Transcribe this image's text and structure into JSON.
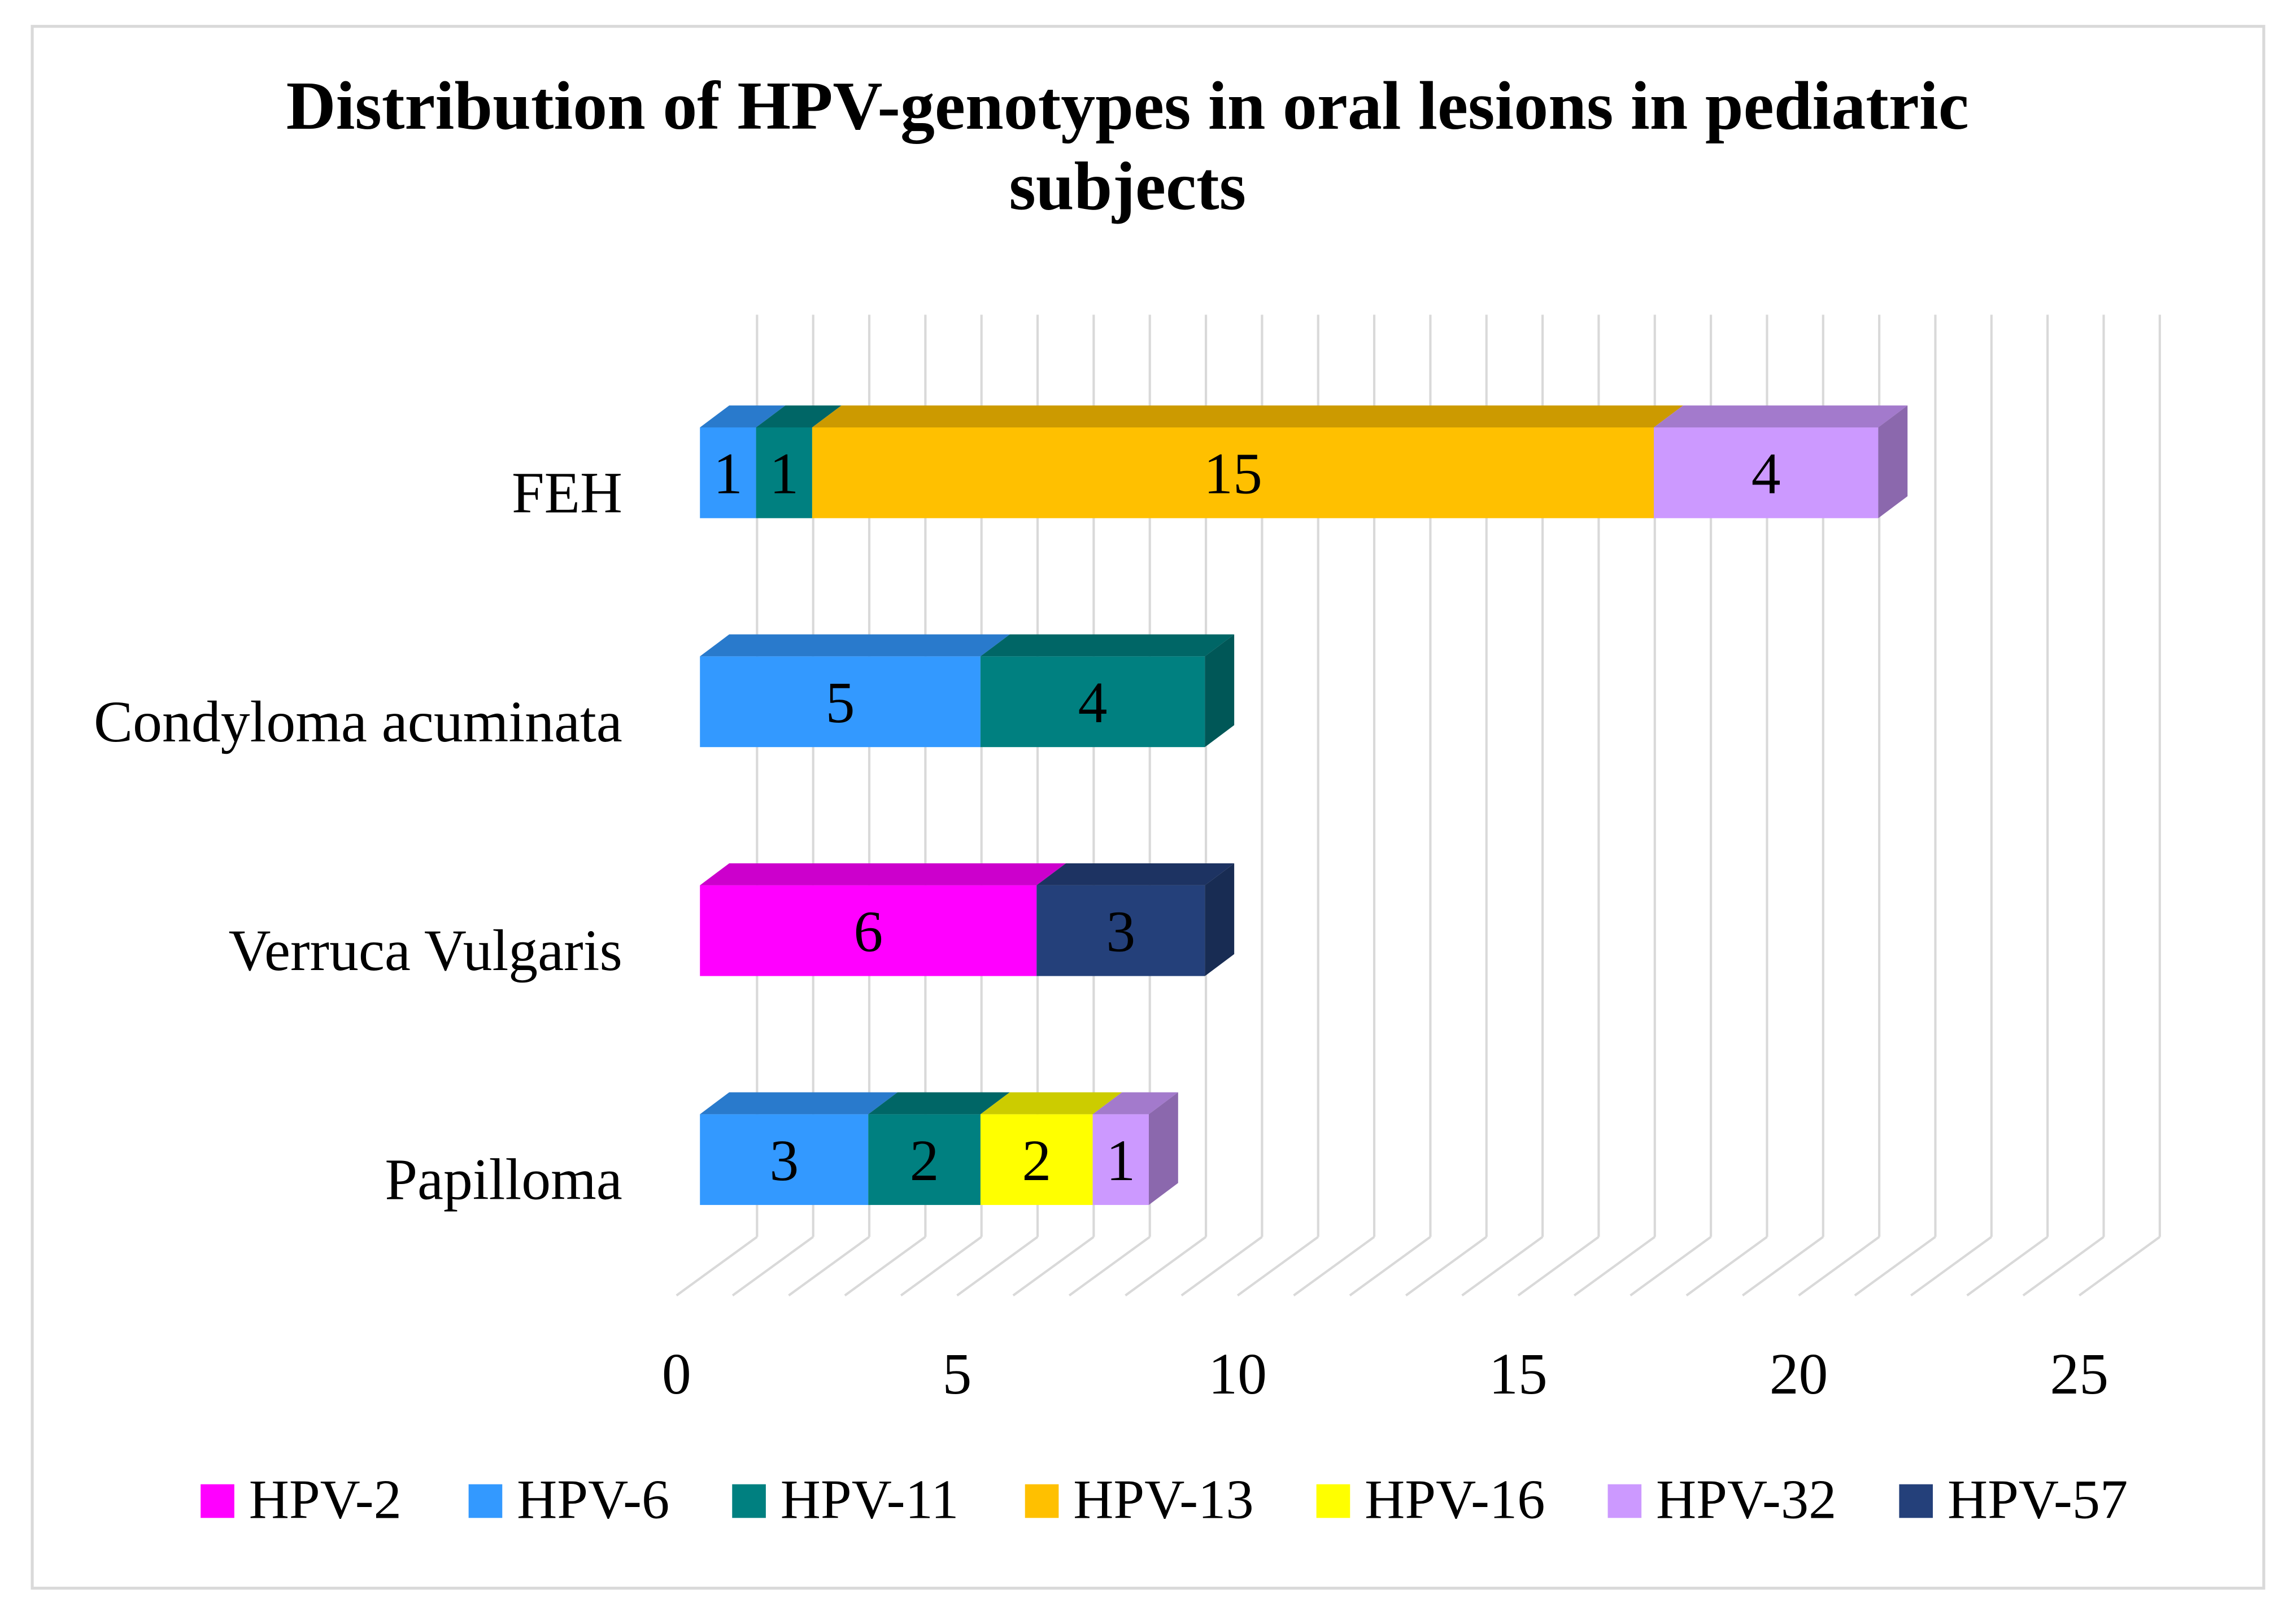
{
  "chart_data": {
    "type": "bar",
    "horizontal": true,
    "stacked": true,
    "three_d": true,
    "title_lines": [
      "Distribution of HPV-genotypes in oral lesions in pediatric",
      "subjects"
    ],
    "categories": [
      "FEH",
      "Condyloma acuminata",
      "Verruca Vulgaris",
      "Papilloma"
    ],
    "series": [
      {
        "name": "HPV-2",
        "color": "#FF00FF",
        "values": [
          0,
          0,
          6,
          0
        ]
      },
      {
        "name": "HPV-6",
        "color": "#3399FF",
        "values": [
          1,
          5,
          0,
          3
        ]
      },
      {
        "name": "HPV-11",
        "color": "#008080",
        "values": [
          1,
          4,
          0,
          2
        ]
      },
      {
        "name": "HPV-13",
        "color": "#FFC000",
        "values": [
          15,
          0,
          0,
          0
        ]
      },
      {
        "name": "HPV-16",
        "color": "#FFFF00",
        "values": [
          0,
          0,
          0,
          2
        ]
      },
      {
        "name": "HPV-32",
        "color": "#CC99FF",
        "values": [
          4,
          0,
          0,
          1
        ]
      },
      {
        "name": "HPV-57",
        "color": "#24407A",
        "values": [
          0,
          0,
          3,
          0
        ]
      }
    ],
    "xlim": [
      0,
      25
    ],
    "x_ticks": [
      0,
      5,
      10,
      15,
      20,
      25
    ],
    "xlabel": "",
    "ylabel": "",
    "grid": true,
    "data_labels": true,
    "legend": "bottom"
  }
}
